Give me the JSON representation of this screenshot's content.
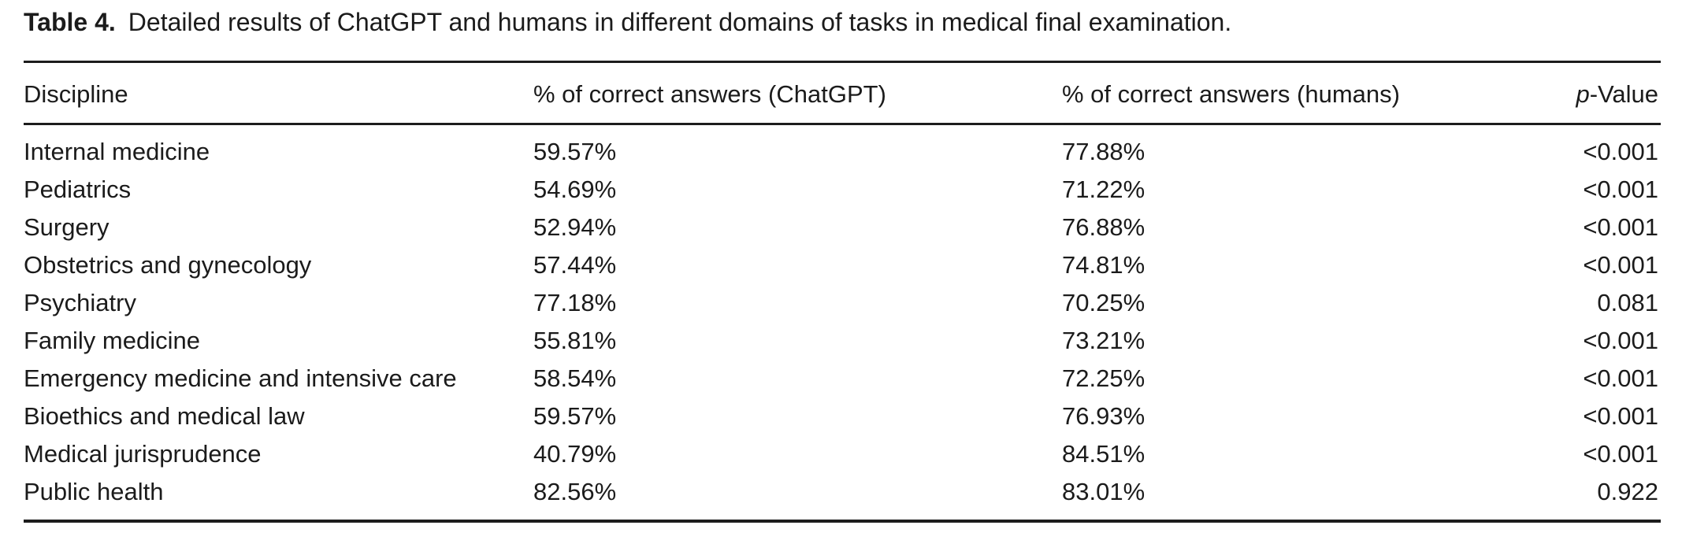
{
  "title": {
    "label": "Table 4.",
    "caption": "Detailed results of ChatGPT and humans in different domains of tasks in medical final examination."
  },
  "table": {
    "headers": {
      "discipline": "Discipline",
      "chatgpt": "% of correct answers (ChatGPT)",
      "humans": "% of correct answers (humans)",
      "p_prefix": "p",
      "p_suffix": "-Value"
    },
    "rows": [
      {
        "discipline": "Internal medicine",
        "chatgpt": "59.57%",
        "humans": "77.88%",
        "p": "<0.001"
      },
      {
        "discipline": "Pediatrics",
        "chatgpt": "54.69%",
        "humans": "71.22%",
        "p": "<0.001"
      },
      {
        "discipline": "Surgery",
        "chatgpt": "52.94%",
        "humans": "76.88%",
        "p": "<0.001"
      },
      {
        "discipline": "Obstetrics and gynecology",
        "chatgpt": "57.44%",
        "humans": "74.81%",
        "p": "<0.001"
      },
      {
        "discipline": "Psychiatry",
        "chatgpt": "77.18%",
        "humans": "70.25%",
        "p": "0.081"
      },
      {
        "discipline": "Family medicine",
        "chatgpt": "55.81%",
        "humans": "73.21%",
        "p": "<0.001"
      },
      {
        "discipline": "Emergency medicine and intensive care",
        "chatgpt": "58.54%",
        "humans": "72.25%",
        "p": "<0.001"
      },
      {
        "discipline": "Bioethics and medical law",
        "chatgpt": "59.57%",
        "humans": "76.93%",
        "p": "<0.001"
      },
      {
        "discipline": "Medical jurisprudence",
        "chatgpt": "40.79%",
        "humans": "84.51%",
        "p": "<0.001"
      },
      {
        "discipline": "Public health",
        "chatgpt": "82.56%",
        "humans": "83.01%",
        "p": "0.922"
      }
    ]
  },
  "chart_data": {
    "type": "table",
    "title": "Table 4. Detailed results of ChatGPT and humans in different domains of tasks in medical final examination.",
    "columns": [
      "Discipline",
      "% of correct answers (ChatGPT)",
      "% of correct answers (humans)",
      "p-Value"
    ],
    "categories": [
      "Internal medicine",
      "Pediatrics",
      "Surgery",
      "Obstetrics and gynecology",
      "Psychiatry",
      "Family medicine",
      "Emergency medicine and intensive care",
      "Bioethics and medical law",
      "Medical jurisprudence",
      "Public health"
    ],
    "series": [
      {
        "name": "% of correct answers (ChatGPT)",
        "values": [
          59.57,
          54.69,
          52.94,
          57.44,
          77.18,
          55.81,
          58.54,
          59.57,
          40.79,
          82.56
        ]
      },
      {
        "name": "% of correct answers (humans)",
        "values": [
          77.88,
          71.22,
          76.88,
          74.81,
          70.25,
          73.21,
          72.25,
          76.93,
          84.51,
          83.01
        ]
      }
    ],
    "p_values": [
      "<0.001",
      "<0.001",
      "<0.001",
      "<0.001",
      "0.081",
      "<0.001",
      "<0.001",
      "<0.001",
      "<0.001",
      "0.922"
    ]
  }
}
